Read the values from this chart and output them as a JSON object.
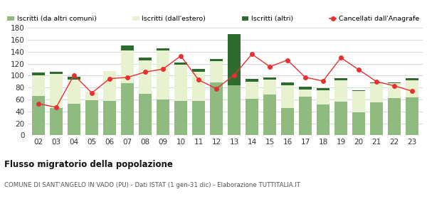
{
  "years": [
    "02",
    "03",
    "04",
    "05",
    "06",
    "07",
    "08",
    "09",
    "10",
    "11",
    "12",
    "13",
    "14",
    "15",
    "16",
    "17",
    "18",
    "19",
    "20",
    "21",
    "22",
    "23"
  ],
  "iscritti_altri_comuni": [
    66,
    46,
    53,
    59,
    58,
    87,
    69,
    60,
    58,
    58,
    89,
    84,
    61,
    68,
    46,
    65,
    52,
    57,
    39,
    55,
    62,
    64
  ],
  "iscritti_estero": [
    35,
    57,
    40,
    14,
    50,
    55,
    57,
    82,
    60,
    49,
    35,
    0,
    29,
    25,
    38,
    12,
    23,
    35,
    35,
    32,
    25,
    28
  ],
  "iscritti_altri": [
    4,
    4,
    5,
    0,
    0,
    8,
    4,
    4,
    4,
    4,
    4,
    85,
    4,
    4,
    4,
    4,
    4,
    4,
    2,
    2,
    2,
    4
  ],
  "cancellati": [
    53,
    47,
    101,
    71,
    95,
    97,
    106,
    111,
    133,
    93,
    78,
    101,
    136,
    115,
    126,
    97,
    91,
    130,
    110,
    90,
    83,
    74
  ],
  "legend_labels": [
    "Iscritti (da altri comuni)",
    "Iscritti (dall'estero)",
    "Iscritti (altri)",
    "Cancellati dall'Anagrafe"
  ],
  "color_altri_comuni": "#8fba80",
  "color_estero": "#e8f2d0",
  "color_altri": "#2e6b2e",
  "color_cancellati": "#e83030",
  "ylim": [
    0,
    180
  ],
  "yticks": [
    0,
    20,
    40,
    60,
    80,
    100,
    120,
    140,
    160,
    180
  ],
  "title": "Flusso migratorio della popolazione",
  "subtitle": "COMUNE DI SANT'ANGELO IN VADO (PU) - Dati ISTAT (1 gen-31 dic) - Elaborazione TUTTITALIA.IT",
  "bg_color": "#ffffff",
  "grid_color": "#d8d8d8"
}
